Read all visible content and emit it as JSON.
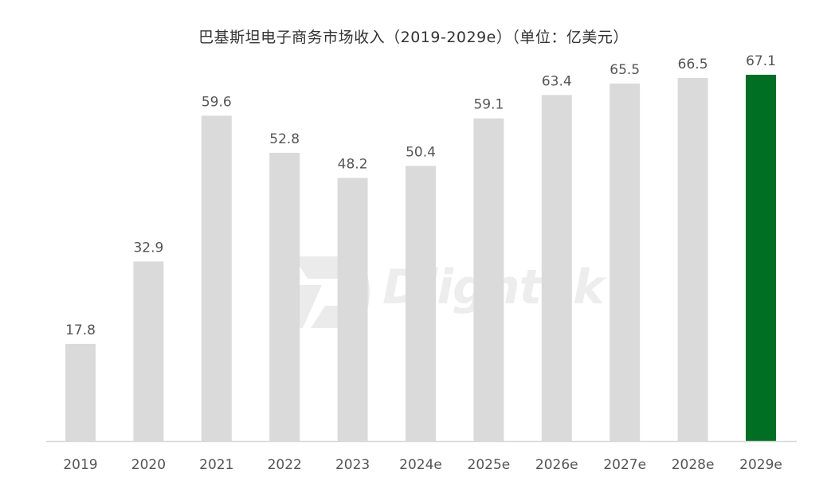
{
  "chart_data": {
    "type": "bar",
    "title": "巴基斯坦电子商务市场收入（2019-2029e）（单位：亿美元）",
    "categories": [
      "2019",
      "2020",
      "2021",
      "2022",
      "2023",
      "2024e",
      "2025e",
      "2026e",
      "2027e",
      "2028e",
      "2029e"
    ],
    "values": [
      17.8,
      32.9,
      59.6,
      52.8,
      48.2,
      50.4,
      59.1,
      63.4,
      65.5,
      66.5,
      67.1
    ],
    "value_labels": [
      "17.8",
      "32.9",
      "59.6",
      "52.8",
      "48.2",
      "50.4",
      "59.1",
      "63.4",
      "65.5",
      "66.5",
      "67.1"
    ],
    "ylim": [
      0,
      70
    ],
    "grid": false,
    "colors": {
      "default_bar": "#dadada",
      "highlight_bar": "#006f24",
      "axis_line": "#d8d8d8"
    },
    "highlight_category": "2029e"
  },
  "watermark": {
    "text": "Dlightek"
  }
}
